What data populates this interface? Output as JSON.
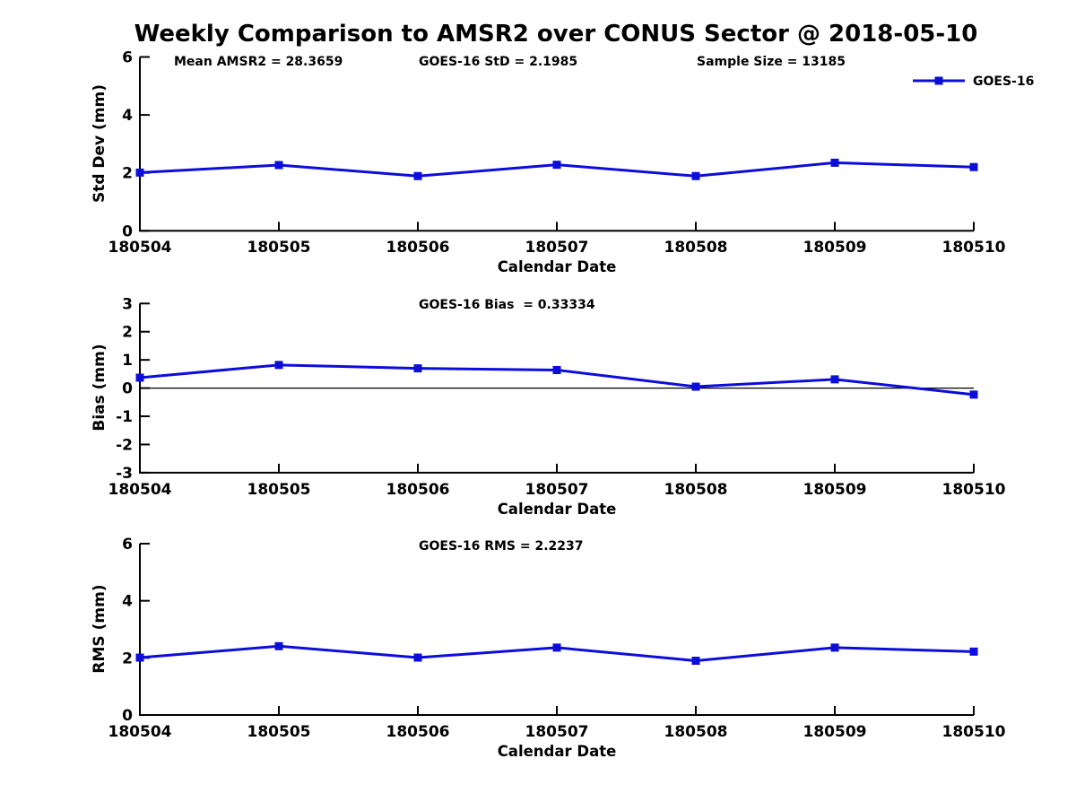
{
  "title": "Weekly Comparison to AMSR2 over CONUS Sector @ 2018-05-10",
  "annotations": {
    "mean_amsr2": "Mean AMSR2 = 28.3659",
    "goes16_std": "GOES-16 StD = 2.1985",
    "sample_size": "Sample Size = 13185"
  },
  "legend": {
    "label": "GOES-16"
  },
  "colors": {
    "series": "#0d0dda",
    "axis": "#000000",
    "zero_line": "#000000",
    "background": "#ffffff",
    "text": "#000000"
  },
  "chart_data": [
    {
      "type": "line",
      "categories": [
        "180504",
        "180505",
        "180506",
        "180507",
        "180508",
        "180509",
        "180510"
      ],
      "series": [
        {
          "name": "GOES-16",
          "values": [
            2.01,
            2.27,
            1.89,
            2.28,
            1.89,
            2.35,
            2.2
          ]
        }
      ],
      "annotation": "",
      "xlabel": "Calendar Date",
      "ylabel": "Std Dev (mm)",
      "ylim": [
        0,
        6
      ],
      "yticks": [
        0,
        2,
        4,
        6
      ],
      "zero_line": false,
      "grid": false,
      "legend_position": "top-right"
    },
    {
      "type": "line",
      "categories": [
        "180504",
        "180505",
        "180506",
        "180507",
        "180508",
        "180509",
        "180510"
      ],
      "series": [
        {
          "name": "GOES-16",
          "values": [
            0.37,
            0.82,
            0.7,
            0.64,
            0.05,
            0.31,
            -0.23
          ]
        }
      ],
      "annotation": "GOES-16 Bias  = 0.33334",
      "xlabel": "Calendar Date",
      "ylabel": "Bias (mm)",
      "ylim": [
        -3,
        3
      ],
      "yticks": [
        -3,
        -2,
        -1,
        0,
        1,
        2,
        3
      ],
      "zero_line": true,
      "grid": false,
      "legend_position": "none"
    },
    {
      "type": "line",
      "categories": [
        "180504",
        "180505",
        "180506",
        "180507",
        "180508",
        "180509",
        "180510"
      ],
      "series": [
        {
          "name": "GOES-16",
          "values": [
            2.01,
            2.41,
            2.01,
            2.36,
            1.9,
            2.36,
            2.22
          ]
        }
      ],
      "annotation": "GOES-16 RMS = 2.2237",
      "xlabel": "Calendar Date",
      "ylabel": "RMS (mm)",
      "ylim": [
        0,
        6
      ],
      "yticks": [
        0,
        2,
        4,
        6
      ],
      "zero_line": false,
      "grid": false,
      "legend_position": "none"
    }
  ]
}
